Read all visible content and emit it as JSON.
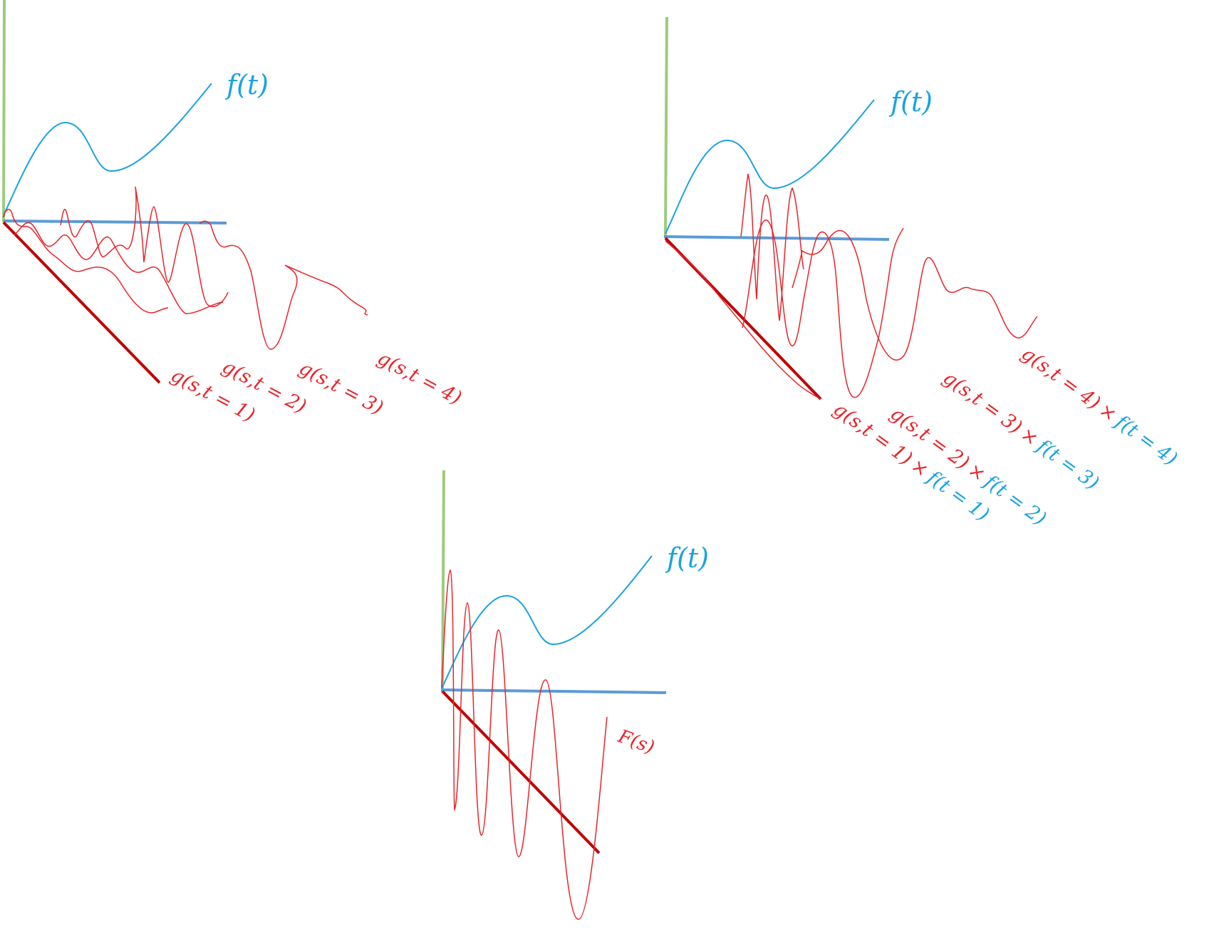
{
  "colors": {
    "vertical_axis": "#9dcb7e",
    "horizontal_axis": "#5b9bd5",
    "diagonal_axis": "#c00000",
    "f_curve": "#1aa3e0",
    "g_curves": "#e8242b"
  },
  "panel_left": {
    "f_label": "f(t)",
    "g_labels": [
      "g(s,t = 1)",
      "g(s,t = 2)",
      "g(s,t = 3)",
      "g(s,t = 4)"
    ]
  },
  "panel_right": {
    "f_label": "f(t)",
    "products": [
      {
        "g": "g(s,t = 1)",
        "times": "×",
        "f": "f(t = 1)"
      },
      {
        "g": "g(s,t = 2)",
        "times": "×",
        "f": "f(t = 2)"
      },
      {
        "g": "g(s,t = 3)",
        "times": "×",
        "f": "f(t = 3)"
      },
      {
        "g": "g(s,t = 4)",
        "times": "×",
        "f": "f(t = 4)"
      }
    ]
  },
  "panel_bottom": {
    "f_label": "f(t)",
    "F_label": "F(s)"
  }
}
